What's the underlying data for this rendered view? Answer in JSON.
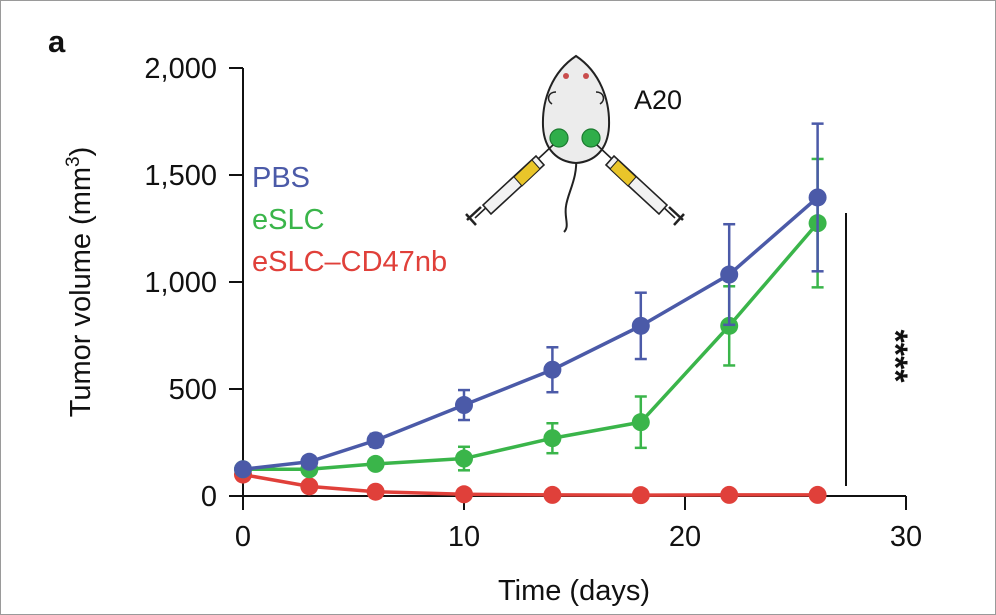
{
  "panel_label": "a",
  "model_label": "A20",
  "significance": "****",
  "chart_data": {
    "type": "line",
    "title": "",
    "xlabel": "Time (days)",
    "ylabel_main": "Tumor volume (mm",
    "ylabel_sup": "3",
    "ylabel_close": ")",
    "xlim": [
      0,
      30
    ],
    "ylim": [
      0,
      2000
    ],
    "xticks": [
      0,
      10,
      20,
      30
    ],
    "xtick_labels": [
      "0",
      "10",
      "20",
      "30"
    ],
    "yticks": [
      0,
      500,
      1000,
      1500,
      2000
    ],
    "ytick_labels": [
      "0",
      "500",
      "1,000",
      "1,500",
      "2,000"
    ],
    "legend_position": "upper-left",
    "series": [
      {
        "name": "PBS",
        "color": "#4b5aa8",
        "x": [
          0,
          3,
          6,
          10,
          14,
          18,
          22,
          26
        ],
        "y": [
          125,
          160,
          260,
          425,
          590,
          795,
          1035,
          1395
        ],
        "err": [
          0,
          0,
          30,
          70,
          105,
          155,
          235,
          345
        ]
      },
      {
        "name": "eSLC",
        "color": "#3ab54a",
        "x": [
          0,
          3,
          6,
          10,
          14,
          18,
          22,
          26
        ],
        "y": [
          125,
          125,
          150,
          175,
          270,
          345,
          795,
          1275
        ],
        "err": [
          0,
          0,
          0,
          55,
          70,
          120,
          185,
          300
        ]
      },
      {
        "name": "eSLC–CD47nb",
        "color": "#e0403a",
        "x": [
          0,
          3,
          6,
          10,
          14,
          18,
          22,
          26
        ],
        "y": [
          100,
          45,
          20,
          8,
          5,
          4,
          5,
          5
        ],
        "err": [
          0,
          0,
          0,
          0,
          0,
          0,
          0,
          0
        ]
      }
    ]
  }
}
